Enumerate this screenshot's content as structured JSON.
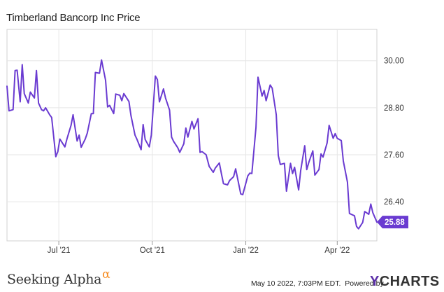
{
  "header": {
    "title": "Timberland Bancorp Inc Price"
  },
  "footer": {
    "brand": "Seeking Alpha",
    "brand_symbol": "α",
    "timestamp": "May 10 2022, 7:03PM EDT.",
    "powered_by": "Powered by",
    "provider_y": "Y",
    "provider_rest": "CHARTS"
  },
  "colors": {
    "line": "#6a3bd1",
    "badge": "#6a3bd1",
    "grid": "#e6e6e6",
    "alpha": "#f68b1f"
  },
  "chart_data": {
    "type": "line",
    "title": "Timberland Bancorp Inc Price",
    "xlabel": "",
    "ylabel": "",
    "x_tick_labels": [
      "Jul '21",
      "Oct '21",
      "Jan '22",
      "Apr '22"
    ],
    "y_tick_labels": [
      "30.00",
      "28.80",
      "27.60",
      "26.40"
    ],
    "ylim": [
      25.4,
      30.8
    ],
    "grid": true,
    "last_value_label": "25.88",
    "x": [
      "2021-05-11",
      "2021-05-13",
      "2021-05-17",
      "2021-05-19",
      "2021-05-21",
      "2021-05-24",
      "2021-05-26",
      "2021-05-28",
      "2021-06-01",
      "2021-06-03",
      "2021-06-07",
      "2021-06-09",
      "2021-06-11",
      "2021-06-14",
      "2021-06-16",
      "2021-06-18",
      "2021-06-22",
      "2021-06-24",
      "2021-06-28",
      "2021-06-30",
      "2021-07-02",
      "2021-07-07",
      "2021-07-09",
      "2021-07-13",
      "2021-07-15",
      "2021-07-19",
      "2021-07-21",
      "2021-07-23",
      "2021-07-27",
      "2021-07-29",
      "2021-08-02",
      "2021-08-04",
      "2021-08-06",
      "2021-08-10",
      "2021-08-12",
      "2021-08-16",
      "2021-08-18",
      "2021-08-20",
      "2021-08-24",
      "2021-08-26",
      "2021-08-30",
      "2021-09-01",
      "2021-09-03",
      "2021-09-08",
      "2021-09-10",
      "2021-09-14",
      "2021-09-16",
      "2021-09-20",
      "2021-09-22",
      "2021-09-24",
      "2021-09-28",
      "2021-09-30",
      "2021-10-04",
      "2021-10-06",
      "2021-10-08",
      "2021-10-12",
      "2021-10-14",
      "2021-10-18",
      "2021-10-20",
      "2021-10-22",
      "2021-10-26",
      "2021-10-28",
      "2021-11-01",
      "2021-11-03",
      "2021-11-05",
      "2021-11-09",
      "2021-11-11",
      "2021-11-15",
      "2021-11-17",
      "2021-11-19",
      "2021-11-23",
      "2021-11-26",
      "2021-11-30",
      "2021-12-02",
      "2021-12-06",
      "2021-12-08",
      "2021-12-10",
      "2021-12-14",
      "2021-12-16",
      "2021-12-20",
      "2021-12-22",
      "2021-12-27",
      "2021-12-29",
      "2022-01-03",
      "2022-01-05",
      "2022-01-07",
      "2022-01-11",
      "2022-01-13",
      "2022-01-17",
      "2022-01-19",
      "2022-01-21",
      "2022-01-25",
      "2022-01-27",
      "2022-01-31",
      "2022-02-02",
      "2022-02-04",
      "2022-02-08",
      "2022-02-10",
      "2022-02-14",
      "2022-02-16",
      "2022-02-18",
      "2022-02-22",
      "2022-02-24",
      "2022-02-28",
      "2022-03-02",
      "2022-03-04",
      "2022-03-08",
      "2022-03-10",
      "2022-03-14",
      "2022-03-16",
      "2022-03-18",
      "2022-03-22",
      "2022-03-24",
      "2022-03-28",
      "2022-03-30",
      "2022-04-01",
      "2022-04-05",
      "2022-04-07",
      "2022-04-11",
      "2022-04-13",
      "2022-04-18",
      "2022-04-20",
      "2022-04-22",
      "2022-04-26",
      "2022-04-28",
      "2022-05-02",
      "2022-05-04",
      "2022-05-06",
      "2022-05-10"
    ],
    "y": [
      29.35,
      28.72,
      28.75,
      29.75,
      29.76,
      28.95,
      29.9,
      29.16,
      28.92,
      29.2,
      29.05,
      29.75,
      28.92,
      28.75,
      28.72,
      28.8,
      28.62,
      28.55,
      27.55,
      27.68,
      28.0,
      27.8,
      28.0,
      28.35,
      28.62,
      27.95,
      28.1,
      27.79,
      28.0,
      28.15,
      28.65,
      28.65,
      29.7,
      29.68,
      30.02,
      29.5,
      28.82,
      28.86,
      28.65,
      29.15,
      29.12,
      28.98,
      29.16,
      28.96,
      28.6,
      28.1,
      27.99,
      27.73,
      28.37,
      27.99,
      27.8,
      28.1,
      29.61,
      29.52,
      28.95,
      29.28,
      29.05,
      28.74,
      28.05,
      27.94,
      27.78,
      27.66,
      27.88,
      28.28,
      28.05,
      28.45,
      28.26,
      28.52,
      27.66,
      27.68,
      27.6,
      27.3,
      27.15,
      27.26,
      27.39,
      27.12,
      26.86,
      26.83,
      26.94,
      27.04,
      27.24,
      26.6,
      26.58,
      27.06,
      27.13,
      27.12,
      28.3,
      29.58,
      29.1,
      29.24,
      28.98,
      29.38,
      29.3,
      28.62,
      27.58,
      27.35,
      27.38,
      26.67,
      27.38,
      27.12,
      27.28,
      26.7,
      27.19,
      27.83,
      27.22,
      27.4,
      27.7,
      27.08,
      27.22,
      27.62,
      27.54,
      27.9,
      28.35,
      28.02,
      28.14,
      28.02,
      27.96,
      27.44,
      26.9,
      26.1,
      26.04,
      25.77,
      25.71,
      25.87,
      26.15,
      26.08,
      26.34,
      26.12,
      25.88
    ]
  }
}
